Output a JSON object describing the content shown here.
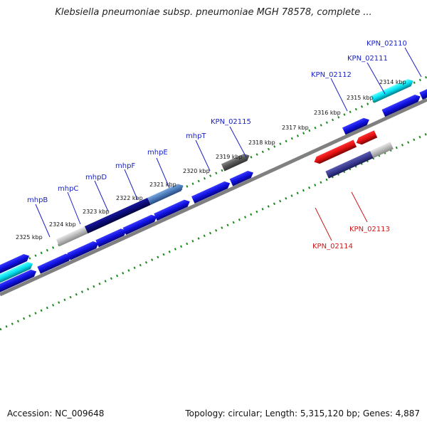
{
  "title": "Klebsiella pneumoniae subsp. pneumoniae MGH 78578, complete ...",
  "footer": {
    "accession": "Accession: NC_009648",
    "topology": "Topology: circular; Length: 5,315,120 bp; Genes: 4,887"
  },
  "colors": {
    "forward_gene": "#1010e0",
    "reverse_gene": "#e01010",
    "selected_dark": "#0a0a7a",
    "selected_light": "#4a7ab8",
    "cyan_feature": "#00e0f0",
    "grey_feature": "#b8b8b8",
    "dark_grey_feature": "#505050",
    "purple_feature": "#3a3a90",
    "backbone": "#808080",
    "tick": "#1a8a1a"
  },
  "scale_labels": [
    {
      "name": "kbp-2325",
      "text": "2325 kbp"
    },
    {
      "name": "kbp-2324",
      "text": "2324 kbp"
    },
    {
      "name": "kbp-2323",
      "text": "2323 kbp"
    },
    {
      "name": "kbp-2322",
      "text": "2322 kbp"
    },
    {
      "name": "kbp-2321",
      "text": "2321 kbp"
    },
    {
      "name": "kbp-2320",
      "text": "2320 kbp"
    },
    {
      "name": "kbp-2319",
      "text": "2319 kbp"
    },
    {
      "name": "kbp-2318",
      "text": "2318 kbp"
    },
    {
      "name": "kbp-2317",
      "text": "2317 kbp"
    },
    {
      "name": "kbp-2316",
      "text": "2316 kbp"
    },
    {
      "name": "kbp-2315",
      "text": "2315 kbp"
    },
    {
      "name": "kbp-2314",
      "text": "2314 kbp"
    }
  ],
  "gene_labels": [
    {
      "name": "label-mhpB",
      "text": "mhpB",
      "strand": "forward"
    },
    {
      "name": "label-mhpC",
      "text": "mhpC",
      "strand": "forward"
    },
    {
      "name": "label-mhpD",
      "text": "mhpD",
      "strand": "forward"
    },
    {
      "name": "label-mhpF",
      "text": "mhpF",
      "strand": "forward"
    },
    {
      "name": "label-mhpE",
      "text": "mhpE",
      "strand": "forward"
    },
    {
      "name": "label-mhpT",
      "text": "mhpT",
      "strand": "forward"
    },
    {
      "name": "label-KPN_02115",
      "text": "KPN_02115",
      "strand": "forward"
    },
    {
      "name": "label-KPN_02112",
      "text": "KPN_02112",
      "strand": "forward"
    },
    {
      "name": "label-KPN_02111",
      "text": "KPN_02111",
      "strand": "forward"
    },
    {
      "name": "label-KPN_02110",
      "text": "KPN_02110",
      "strand": "forward"
    },
    {
      "name": "label-KPN_02113",
      "text": "KPN_02113",
      "strand": "reverse"
    },
    {
      "name": "label-KPN_02114",
      "text": "KPN_02114",
      "strand": "reverse"
    }
  ]
}
